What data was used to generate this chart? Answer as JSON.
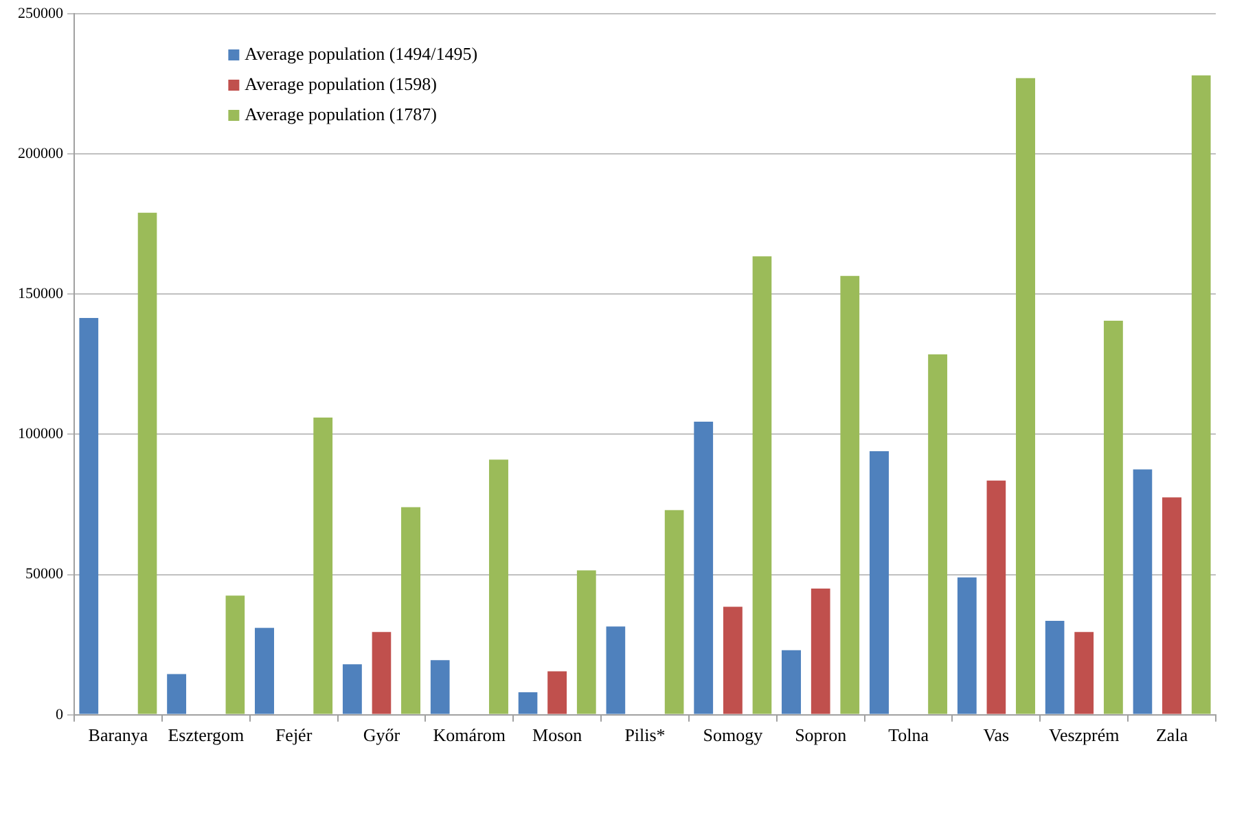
{
  "chart_data": {
    "type": "bar",
    "categories": [
      "Baranya",
      "Esztergom",
      "Fejér",
      "Győr",
      "Komárom",
      "Moson",
      "Pilis*",
      "Somogy",
      "Sopron",
      "Tolna",
      "Vas",
      "Veszprém",
      "Zala"
    ],
    "series": [
      {
        "name": "Average population (1494/1495)",
        "color": "#4f81bd",
        "values": [
          142000,
          15000,
          31500,
          18500,
          20000,
          8500,
          32000,
          105000,
          23500,
          94500,
          49500,
          34000,
          88000
        ]
      },
      {
        "name": "Average population (1598)",
        "color": "#c0504d",
        "values": [
          null,
          null,
          null,
          30000,
          null,
          16000,
          null,
          39000,
          45500,
          null,
          84000,
          30000,
          78000
        ]
      },
      {
        "name": "Average population (1787)",
        "color": "#9bbb59",
        "values": [
          179500,
          43000,
          106500,
          74500,
          91500,
          52000,
          73500,
          164000,
          157000,
          129000,
          227500,
          141000,
          228500
        ]
      }
    ],
    "ylim": [
      0,
      250000
    ],
    "yticks": [
      0,
      50000,
      100000,
      150000,
      200000,
      250000
    ],
    "grid": "y",
    "legend": "top left"
  }
}
